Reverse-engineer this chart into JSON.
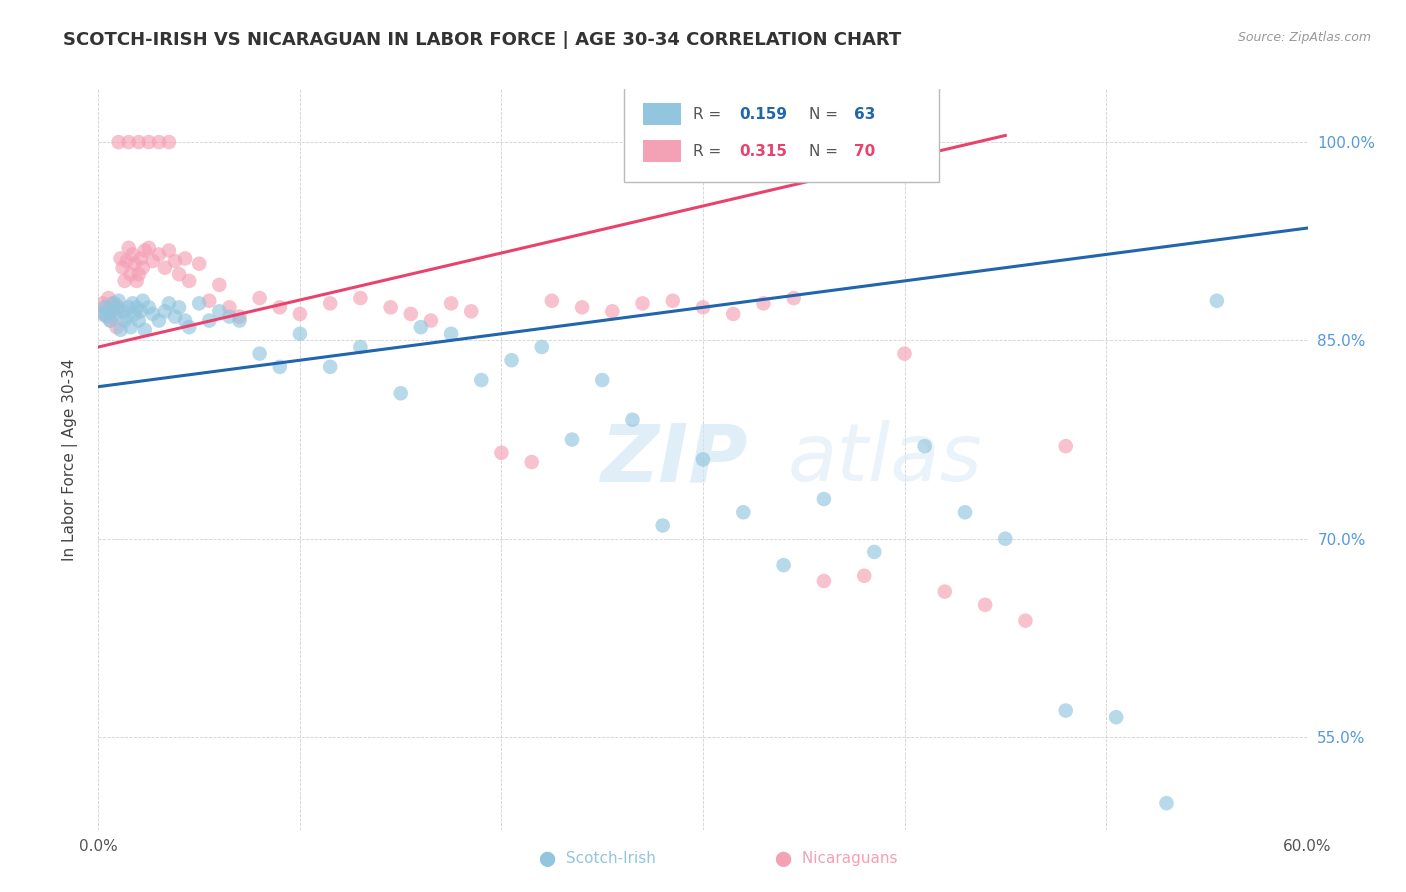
{
  "title": "SCOTCH-IRISH VS NICARAGUAN IN LABOR FORCE | AGE 30-34 CORRELATION CHART",
  "source": "Source: ZipAtlas.com",
  "ylabel": "In Labor Force | Age 30-34",
  "xlim": [
    0.0,
    0.6
  ],
  "ylim": [
    0.48,
    1.04
  ],
  "xtick_positions": [
    0.0,
    0.1,
    0.2,
    0.3,
    0.4,
    0.5,
    0.6
  ],
  "xticklabels": [
    "0.0%",
    "",
    "",
    "",
    "",
    "",
    "60.0%"
  ],
  "ytick_positions": [
    0.55,
    0.7,
    0.85,
    1.0
  ],
  "yticklabels": [
    "55.0%",
    "70.0%",
    "85.0%",
    "100.0%"
  ],
  "scotch_irish_R": 0.159,
  "scotch_irish_N": 63,
  "nicaraguan_R": 0.315,
  "nicaraguan_N": 70,
  "blue_color": "#92c5de",
  "pink_color": "#f4a0b5",
  "blue_line_color": "#2166ac",
  "pink_line_color": "#e8436e",
  "watermark_zip": "ZIP",
  "watermark_atlas": "atlas",
  "blue_line_x0": 0.0,
  "blue_line_y0": 0.815,
  "blue_line_x1": 0.6,
  "blue_line_y1": 0.935,
  "pink_line_x0": 0.0,
  "pink_line_y0": 0.845,
  "pink_line_x1": 0.45,
  "pink_line_y1": 1.005,
  "scotch_irish_x": [
    0.002,
    0.003,
    0.004,
    0.005,
    0.006,
    0.007,
    0.008,
    0.009,
    0.01,
    0.011,
    0.012,
    0.013,
    0.014,
    0.015,
    0.016,
    0.017,
    0.018,
    0.019,
    0.02,
    0.021,
    0.022,
    0.023,
    0.025,
    0.027,
    0.03,
    0.033,
    0.035,
    0.038,
    0.04,
    0.043,
    0.045,
    0.05,
    0.055,
    0.06,
    0.065,
    0.07,
    0.08,
    0.09,
    0.1,
    0.115,
    0.13,
    0.15,
    0.16,
    0.175,
    0.19,
    0.205,
    0.22,
    0.235,
    0.25,
    0.265,
    0.28,
    0.3,
    0.32,
    0.34,
    0.36,
    0.385,
    0.41,
    0.43,
    0.45,
    0.48,
    0.505,
    0.53,
    0.555
  ],
  "scotch_irish_y": [
    0.87,
    0.875,
    0.868,
    0.872,
    0.865,
    0.878,
    0.87,
    0.875,
    0.88,
    0.858,
    0.872,
    0.865,
    0.868,
    0.875,
    0.86,
    0.878,
    0.87,
    0.875,
    0.865,
    0.872,
    0.88,
    0.858,
    0.875,
    0.87,
    0.865,
    0.872,
    0.878,
    0.868,
    0.875,
    0.865,
    0.86,
    0.878,
    0.865,
    0.872,
    0.868,
    0.865,
    0.84,
    0.83,
    0.855,
    0.83,
    0.845,
    0.81,
    0.86,
    0.855,
    0.82,
    0.835,
    0.845,
    0.775,
    0.82,
    0.79,
    0.71,
    0.76,
    0.72,
    0.68,
    0.73,
    0.69,
    0.77,
    0.72,
    0.7,
    0.57,
    0.565,
    0.5,
    0.88
  ],
  "nicaraguan_x": [
    0.002,
    0.003,
    0.004,
    0.005,
    0.006,
    0.007,
    0.008,
    0.009,
    0.01,
    0.011,
    0.012,
    0.013,
    0.014,
    0.015,
    0.016,
    0.017,
    0.018,
    0.019,
    0.02,
    0.021,
    0.022,
    0.023,
    0.025,
    0.027,
    0.03,
    0.033,
    0.035,
    0.038,
    0.04,
    0.043,
    0.045,
    0.05,
    0.055,
    0.06,
    0.065,
    0.07,
    0.08,
    0.09,
    0.1,
    0.115,
    0.13,
    0.145,
    0.155,
    0.165,
    0.175,
    0.185,
    0.2,
    0.215,
    0.225,
    0.24,
    0.255,
    0.27,
    0.285,
    0.3,
    0.315,
    0.33,
    0.345,
    0.36,
    0.38,
    0.4,
    0.42,
    0.44,
    0.46,
    0.48,
    0.01,
    0.015,
    0.02,
    0.025,
    0.03,
    0.035
  ],
  "nicaraguan_y": [
    0.878,
    0.87,
    0.875,
    0.882,
    0.865,
    0.872,
    0.878,
    0.86,
    0.875,
    0.912,
    0.905,
    0.895,
    0.91,
    0.92,
    0.9,
    0.915,
    0.908,
    0.895,
    0.9,
    0.912,
    0.905,
    0.918,
    0.92,
    0.91,
    0.915,
    0.905,
    0.918,
    0.91,
    0.9,
    0.912,
    0.895,
    0.908,
    0.88,
    0.892,
    0.875,
    0.868,
    0.882,
    0.875,
    0.87,
    0.878,
    0.882,
    0.875,
    0.87,
    0.865,
    0.878,
    0.872,
    0.765,
    0.758,
    0.88,
    0.875,
    0.872,
    0.878,
    0.88,
    0.875,
    0.87,
    0.878,
    0.882,
    0.668,
    0.672,
    0.84,
    0.66,
    0.65,
    0.638,
    0.77,
    1.0,
    1.0,
    1.0,
    1.0,
    1.0,
    1.0
  ]
}
